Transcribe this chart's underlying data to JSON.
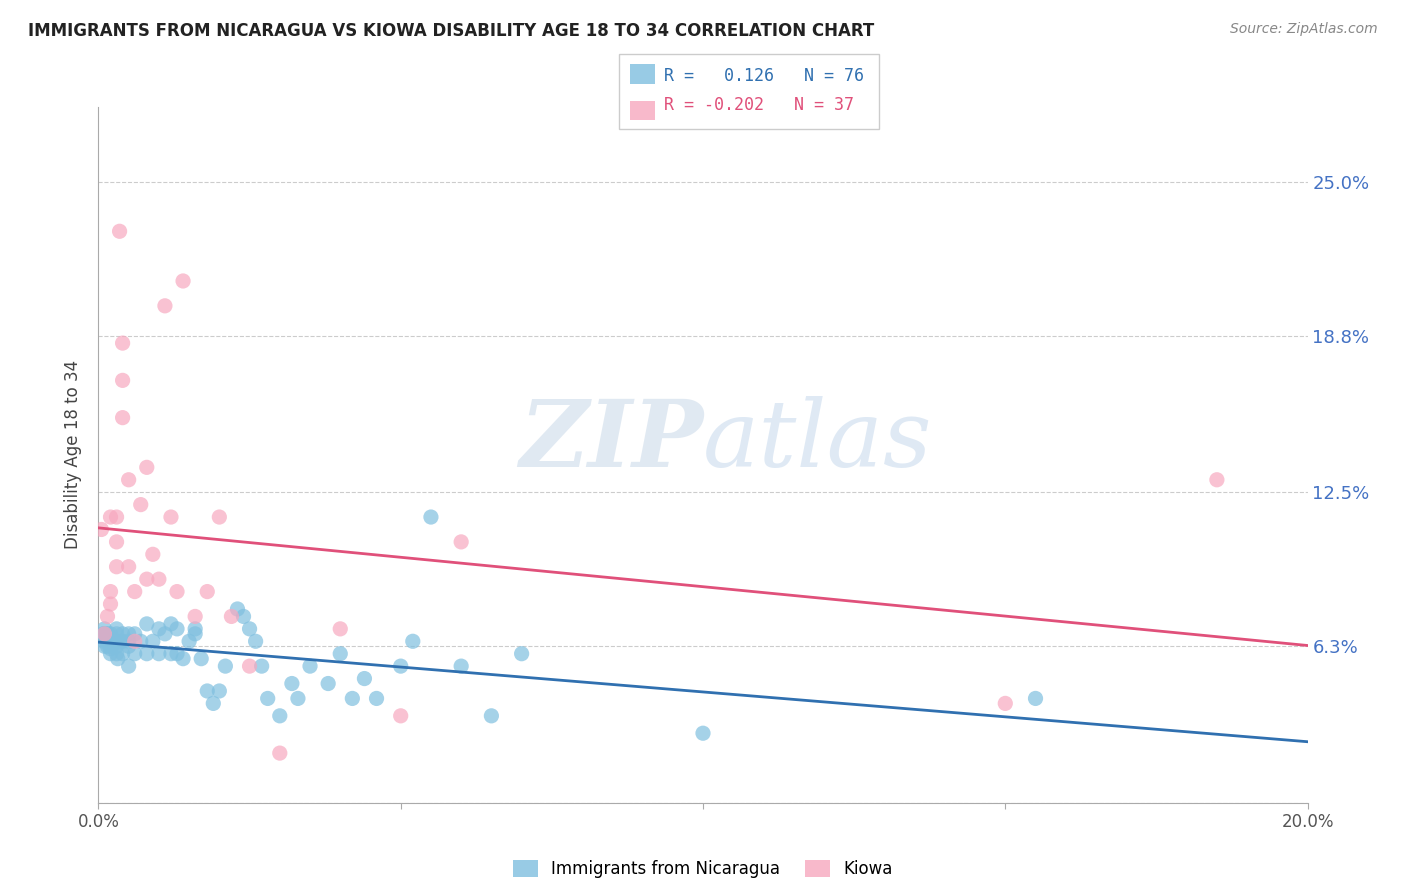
{
  "title": "IMMIGRANTS FROM NICARAGUA VS KIOWA DISABILITY AGE 18 TO 34 CORRELATION CHART",
  "source": "Source: ZipAtlas.com",
  "ylabel": "Disability Age 18 to 34",
  "xlim": [
    0.0,
    0.2
  ],
  "ylim": [
    0.0,
    0.28
  ],
  "yticks": [
    0.0,
    0.063,
    0.125,
    0.188,
    0.25
  ],
  "ytick_labels": [
    "",
    "6.3%",
    "12.5%",
    "18.8%",
    "25.0%"
  ],
  "xticks": [
    0.0,
    0.05,
    0.1,
    0.15,
    0.2
  ],
  "xtick_labels": [
    "0.0%",
    "",
    "",
    "",
    "20.0%"
  ],
  "blue_color": "#7fbfdf",
  "pink_color": "#f7a8bf",
  "blue_line_color": "#3070b0",
  "pink_line_color": "#e0507a",
  "R_blue": 0.126,
  "N_blue": 76,
  "R_pink": -0.202,
  "N_pink": 37,
  "watermark_zip": "ZIP",
  "watermark_atlas": "atlas",
  "legend_label_blue": "Immigrants from Nicaragua",
  "legend_label_pink": "Kiowa",
  "blue_x": [
    0.0008,
    0.0009,
    0.001,
    0.001,
    0.001,
    0.0012,
    0.0013,
    0.0015,
    0.0015,
    0.0016,
    0.0018,
    0.002,
    0.002,
    0.002,
    0.002,
    0.002,
    0.0022,
    0.0025,
    0.003,
    0.003,
    0.003,
    0.003,
    0.003,
    0.0032,
    0.004,
    0.004,
    0.004,
    0.005,
    0.005,
    0.005,
    0.005,
    0.006,
    0.006,
    0.007,
    0.008,
    0.008,
    0.009,
    0.01,
    0.01,
    0.011,
    0.012,
    0.012,
    0.013,
    0.013,
    0.014,
    0.015,
    0.016,
    0.016,
    0.017,
    0.018,
    0.019,
    0.02,
    0.021,
    0.023,
    0.024,
    0.025,
    0.026,
    0.027,
    0.028,
    0.03,
    0.032,
    0.033,
    0.035,
    0.038,
    0.04,
    0.042,
    0.044,
    0.046,
    0.05,
    0.052,
    0.055,
    0.06,
    0.065,
    0.07,
    0.1,
    0.155
  ],
  "blue_y": [
    0.068,
    0.065,
    0.07,
    0.068,
    0.063,
    0.068,
    0.066,
    0.065,
    0.063,
    0.068,
    0.065,
    0.068,
    0.066,
    0.064,
    0.062,
    0.06,
    0.063,
    0.065,
    0.07,
    0.068,
    0.065,
    0.063,
    0.06,
    0.058,
    0.068,
    0.065,
    0.06,
    0.068,
    0.065,
    0.063,
    0.055,
    0.068,
    0.06,
    0.065,
    0.072,
    0.06,
    0.065,
    0.07,
    0.06,
    0.068,
    0.072,
    0.06,
    0.07,
    0.06,
    0.058,
    0.065,
    0.07,
    0.068,
    0.058,
    0.045,
    0.04,
    0.045,
    0.055,
    0.078,
    0.075,
    0.07,
    0.065,
    0.055,
    0.042,
    0.035,
    0.048,
    0.042,
    0.055,
    0.048,
    0.06,
    0.042,
    0.05,
    0.042,
    0.055,
    0.065,
    0.115,
    0.055,
    0.035,
    0.06,
    0.028,
    0.042
  ],
  "pink_x": [
    0.0005,
    0.001,
    0.0015,
    0.002,
    0.002,
    0.002,
    0.003,
    0.003,
    0.003,
    0.0035,
    0.004,
    0.004,
    0.004,
    0.005,
    0.005,
    0.006,
    0.006,
    0.007,
    0.008,
    0.008,
    0.009,
    0.01,
    0.011,
    0.012,
    0.013,
    0.014,
    0.016,
    0.018,
    0.02,
    0.022,
    0.025,
    0.03,
    0.04,
    0.05,
    0.06,
    0.15,
    0.185
  ],
  "pink_y": [
    0.11,
    0.068,
    0.075,
    0.115,
    0.085,
    0.08,
    0.095,
    0.105,
    0.115,
    0.23,
    0.17,
    0.155,
    0.185,
    0.13,
    0.095,
    0.065,
    0.085,
    0.12,
    0.135,
    0.09,
    0.1,
    0.09,
    0.2,
    0.115,
    0.085,
    0.21,
    0.075,
    0.085,
    0.115,
    0.075,
    0.055,
    0.02,
    0.07,
    0.035,
    0.105,
    0.04,
    0.13
  ]
}
